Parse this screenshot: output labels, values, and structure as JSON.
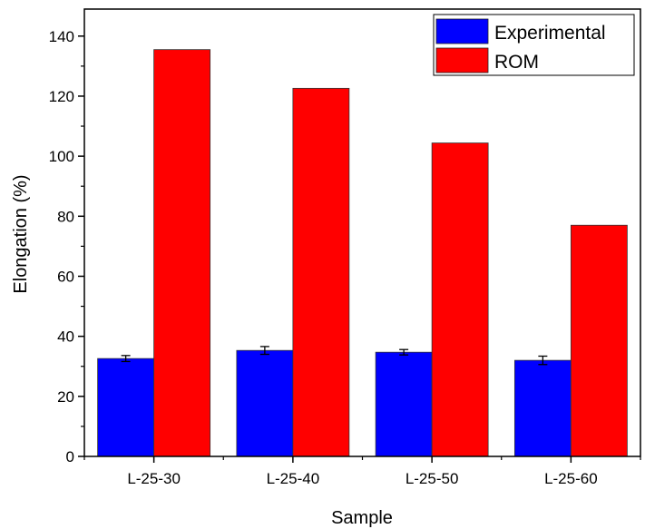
{
  "chart_data": {
    "type": "bar",
    "title": "",
    "xlabel": "Sample",
    "ylabel": "Elongation (%)",
    "categories": [
      "L-25-30",
      "L-25-40",
      "L-25-50",
      "L-25-60"
    ],
    "ylim": [
      0,
      149
    ],
    "yticks": [
      0,
      20,
      40,
      60,
      80,
      100,
      120,
      140
    ],
    "yminor_step": 10,
    "grid": false,
    "legend_position": "top-right",
    "series": [
      {
        "name": "Experimental",
        "color": "#0000ff",
        "values": [
          32.6,
          35.3,
          34.7,
          32.0
        ],
        "errors": [
          1.0,
          1.3,
          0.9,
          1.4
        ]
      },
      {
        "name": "ROM",
        "color": "#ff0000",
        "values": [
          135.5,
          122.6,
          104.4,
          77.0
        ]
      }
    ]
  }
}
